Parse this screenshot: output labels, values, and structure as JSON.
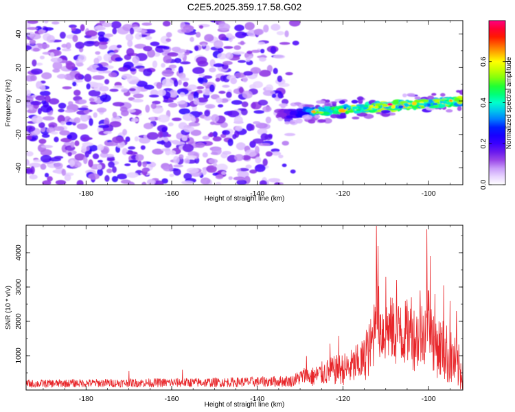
{
  "title": "C2E5.2025.359.17.58.G02",
  "chart_data": [
    {
      "type": "heatmap",
      "xlabel": "Height of straight line (km)",
      "ylabel": "Frequency (Hz)",
      "xlim": [
        -194,
        -92
      ],
      "ylim": [
        -50,
        48
      ],
      "x_ticks": [
        "-180",
        "-160",
        "-140",
        "-120",
        "-100"
      ],
      "x_tick_values": [
        -180,
        -160,
        -140,
        -120,
        -100
      ],
      "y_ticks": [
        "-40",
        "-20",
        "0",
        "20",
        "40"
      ],
      "y_tick_values": [
        -40,
        -20,
        0,
        20,
        40
      ],
      "colorbar": {
        "label": "Normalized spectral amplitude",
        "range": [
          0,
          0.8
        ],
        "ticks": [
          "0.0",
          "0.2",
          "0.4",
          "0.6"
        ],
        "tick_values": [
          0.0,
          0.2,
          0.4,
          0.6
        ],
        "colors": [
          "#ffffff",
          "#d9b8ff",
          "#8a2be2",
          "#3b00ff",
          "#0000ff",
          "#00a0ff",
          "#00ffcc",
          "#00ff40",
          "#a0ff00",
          "#ffff00",
          "#ff8000",
          "#ff0000",
          "#ff0080"
        ]
      },
      "noise_region_x": [
        -194,
        -131
      ],
      "signal_band": {
        "x_range": [
          -135,
          -92
        ],
        "center_freq_start": -8,
        "center_freq_end": 0,
        "peak_x": -109,
        "peak_amplitude": 0.8
      }
    },
    {
      "type": "line",
      "xlabel": "Height of straight line (km)",
      "ylabel": "SNR (10 * v/v)",
      "xlim": [
        -194,
        -92
      ],
      "ylim": [
        0,
        4800
      ],
      "x_ticks": [
        "-180",
        "-160",
        "-140",
        "-120",
        "-100"
      ],
      "x_tick_values": [
        -180,
        -160,
        -140,
        -120,
        -100
      ],
      "y_ticks": [
        "1000",
        "2000",
        "3000",
        "4000"
      ],
      "y_tick_values": [
        1000,
        2000,
        3000,
        4000
      ],
      "color": "#e8262a",
      "x_knots": [
        -194,
        -180,
        -165,
        -150,
        -140,
        -132,
        -129,
        -127,
        -124,
        -121,
        -119,
        -117,
        -115,
        -113,
        -112.3,
        -111.5,
        -110.5,
        -109,
        -107,
        -105,
        -103,
        -101,
        -100.3,
        -99,
        -98,
        -96,
        -94,
        -92
      ],
      "y_knots": [
        180,
        200,
        210,
        220,
        240,
        260,
        420,
        380,
        520,
        600,
        620,
        720,
        900,
        1400,
        2600,
        1900,
        1700,
        1800,
        1600,
        1700,
        1500,
        1700,
        2300,
        1500,
        1300,
        1100,
        800,
        500
      ],
      "noise_knots": [
        120,
        120,
        130,
        140,
        150,
        170,
        260,
        300,
        380,
        450,
        500,
        560,
        650,
        950,
        1100,
        1050,
        1000,
        950,
        1000,
        950,
        1000,
        1000,
        1100,
        950,
        950,
        900,
        800,
        600
      ],
      "spikes": [
        {
          "x": -170.0,
          "y": 560
        },
        {
          "x": -157.5,
          "y": 590
        },
        {
          "x": -128.5,
          "y": 990
        },
        {
          "x": -123.0,
          "y": 1350
        },
        {
          "x": -121.0,
          "y": 1580
        },
        {
          "x": -117.0,
          "y": 1300
        },
        {
          "x": -114.5,
          "y": 1750
        },
        {
          "x": -112.2,
          "y": 4780
        },
        {
          "x": -111.8,
          "y": 4200
        },
        {
          "x": -110.0,
          "y": 3300
        },
        {
          "x": -107.5,
          "y": 3200
        },
        {
          "x": -106.5,
          "y": 2400
        },
        {
          "x": -104.0,
          "y": 2700
        },
        {
          "x": -102.0,
          "y": 2900
        },
        {
          "x": -100.4,
          "y": 4680
        },
        {
          "x": -99.6,
          "y": 3900
        },
        {
          "x": -98.5,
          "y": 2800
        },
        {
          "x": -96.5,
          "y": 3050
        },
        {
          "x": -95.0,
          "y": 2600
        },
        {
          "x": -93.5,
          "y": 2300
        }
      ]
    }
  ]
}
